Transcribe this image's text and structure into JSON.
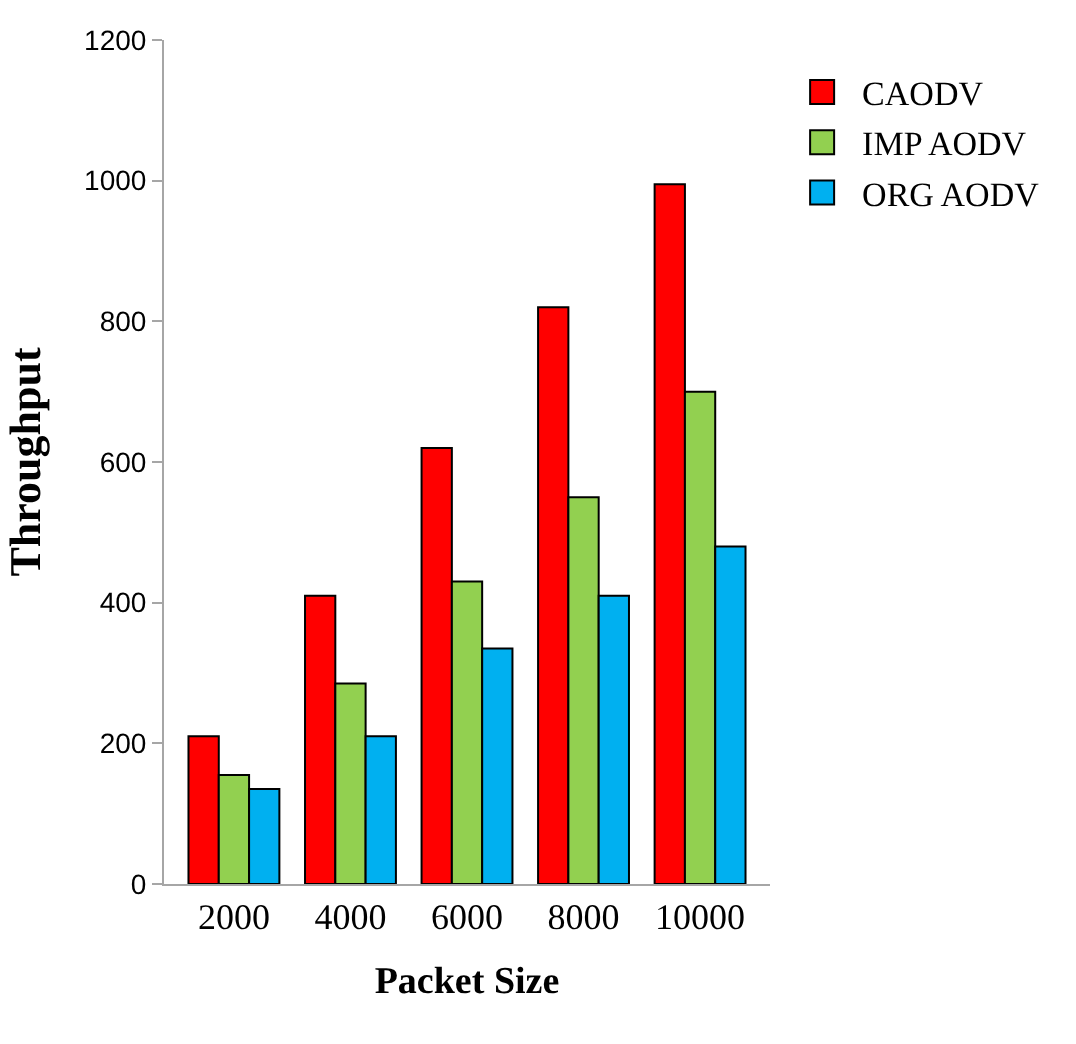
{
  "chart_data": {
    "type": "bar",
    "xlabel": "Packet Size",
    "ylabel": "Throughput",
    "categories": [
      "2000",
      "4000",
      "6000",
      "8000",
      "10000"
    ],
    "series": [
      {
        "name": "CAODV",
        "color": "#ff0000",
        "values": [
          210,
          410,
          620,
          820,
          995
        ]
      },
      {
        "name": "IMP AODV",
        "color": "#92d050",
        "values": [
          155,
          285,
          430,
          550,
          700
        ]
      },
      {
        "name": "ORG AODV",
        "color": "#00b0f0",
        "values": [
          135,
          210,
          335,
          410,
          480
        ]
      }
    ],
    "ylim": [
      0,
      1200
    ],
    "yticks": [
      0,
      200,
      400,
      600,
      800,
      1000,
      1200
    ],
    "legend": "top right"
  }
}
